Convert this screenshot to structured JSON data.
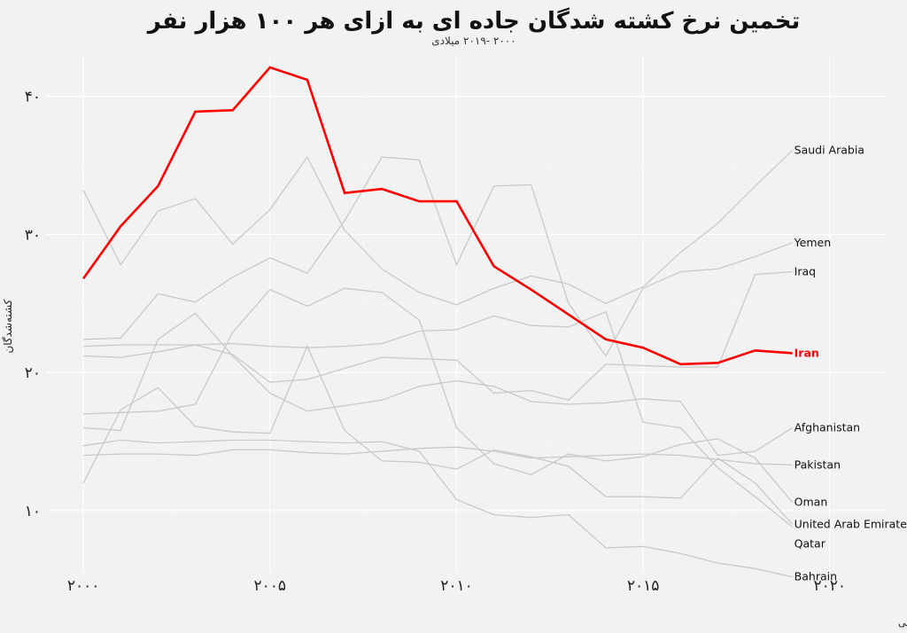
{
  "chart_data": {
    "type": "line",
    "title": "تخمین نرخ کشته شدگان جاده ای به ازای هر ۱۰۰ هزار نفر",
    "subtitle": "۲۰۰۰ -۲۰۱۹ میلادی",
    "ylabel": "کشته‌شدگان",
    "xlabel": "",
    "caption": "منبع: سازمان بهداشت جهانی",
    "xlim": [
      1999,
      2021.5
    ],
    "ylim": [
      5.5,
      43
    ],
    "x_ticks": [
      2000,
      2005,
      2010,
      2015,
      2020
    ],
    "x_tick_labels": [
      "۲۰۰۰",
      "۲۰۰۵",
      "۲۰۱۰",
      "۲۰۱۵",
      "۲۰۲۰"
    ],
    "y_ticks": [
      10,
      20,
      30,
      40
    ],
    "y_tick_labels": [
      "۱۰",
      "۲۰",
      "۳۰",
      "۴۰"
    ],
    "grid": true,
    "legend": "none",
    "highlight": "Iran",
    "colors": {
      "highlight": "#ff0000",
      "other": "#c9c9c9",
      "background": "#f2f2f2",
      "grid": "#ffffff"
    },
    "x": [
      2000,
      2001,
      2002,
      2003,
      2004,
      2005,
      2006,
      2007,
      2008,
      2009,
      2010,
      2011,
      2012,
      2013,
      2014,
      2015,
      2016,
      2017,
      2018,
      2019
    ],
    "series": [
      {
        "name": "Saudi Arabia",
        "values": [
          33.2,
          27.8,
          31.7,
          32.6,
          29.3,
          31.8,
          35.6,
          30.3,
          27.5,
          25.8,
          24.9,
          26.1,
          27.0,
          26.4,
          25.0,
          26.2,
          28.7,
          30.8,
          33.5,
          36.1
        ]
      },
      {
        "name": "Yemen",
        "values": [
          22.4,
          22.5,
          25.7,
          25.1,
          26.9,
          28.3,
          27.2,
          31.0,
          35.6,
          35.4,
          27.8,
          33.5,
          33.6,
          25.0,
          21.2,
          26.1,
          27.3,
          27.5,
          28.4,
          29.4
        ]
      },
      {
        "name": "Iraq",
        "values": [
          21.2,
          21.1,
          21.5,
          22.0,
          21.3,
          19.3,
          19.5,
          20.3,
          21.1,
          21.0,
          20.9,
          18.5,
          18.7,
          18.0,
          20.6,
          20.5,
          20.4,
          20.4,
          27.1,
          27.3
        ]
      },
      {
        "name": "Iran",
        "values": [
          26.8,
          30.6,
          33.5,
          38.9,
          39.0,
          42.1,
          41.2,
          33.0,
          33.3,
          32.4,
          32.4,
          27.7,
          26.0,
          24.2,
          22.4,
          21.8,
          20.6,
          20.7,
          21.6,
          21.4
        ]
      },
      {
        "name": "Afghanistan",
        "values": [
          16.0,
          15.8,
          22.4,
          24.3,
          21.2,
          18.5,
          17.2,
          17.6,
          18.0,
          19.0,
          19.4,
          19.0,
          17.9,
          17.7,
          17.8,
          18.1,
          17.9,
          14.0,
          14.3,
          16.0
        ]
      },
      {
        "name": "Pakistan",
        "values": [
          14.0,
          14.1,
          14.1,
          14.0,
          14.4,
          14.4,
          14.2,
          14.1,
          14.3,
          14.5,
          14.6,
          14.3,
          13.8,
          13.9,
          14.0,
          14.1,
          14.0,
          13.7,
          13.4,
          13.3
        ]
      },
      {
        "name": "Oman",
        "values": [
          17.0,
          17.1,
          17.2,
          17.7,
          22.9,
          26.0,
          24.8,
          26.1,
          25.8,
          23.8,
          16.0,
          13.4,
          12.6,
          14.1,
          13.6,
          13.9,
          14.8,
          15.2,
          13.8,
          10.6
        ]
      },
      {
        "name": "United Arab Emirates",
        "values": [
          12.0,
          17.3,
          18.9,
          16.1,
          15.7,
          15.6,
          21.9,
          15.8,
          13.6,
          13.5,
          13.0,
          14.4,
          13.9,
          13.2,
          11.0,
          11.0,
          10.9,
          13.8,
          12.0,
          9.0
        ]
      },
      {
        "name": "Qatar",
        "values": [
          21.9,
          22.0,
          22.0,
          22.0,
          22.1,
          21.9,
          21.8,
          21.9,
          22.1,
          23.0,
          23.1,
          24.1,
          23.4,
          23.3,
          24.4,
          16.4,
          16.0,
          13.1,
          11.0,
          8.8
        ]
      },
      {
        "name": "Bahrain",
        "values": [
          14.7,
          15.1,
          14.9,
          15.0,
          15.1,
          15.1,
          15.0,
          14.9,
          15.0,
          14.3,
          10.8,
          9.7,
          9.5,
          9.7,
          7.3,
          7.4,
          6.9,
          6.2,
          5.8,
          5.2
        ]
      }
    ]
  }
}
